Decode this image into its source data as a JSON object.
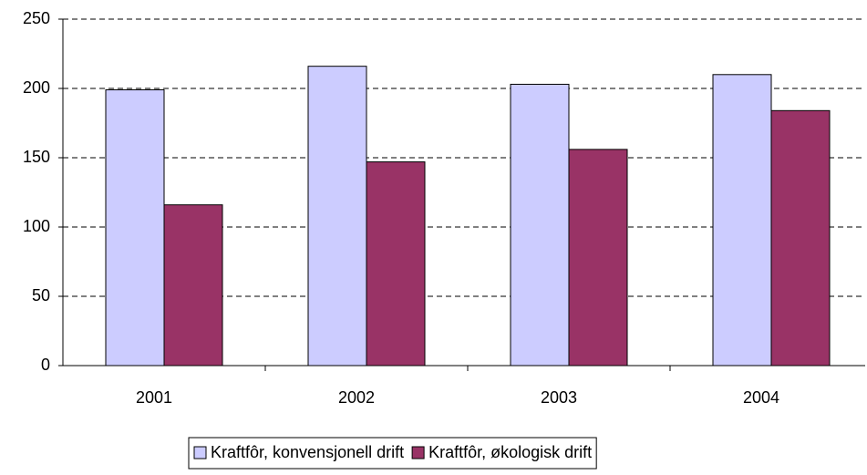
{
  "chart_data": {
    "type": "bar",
    "categories": [
      "2001",
      "2002",
      "2003",
      "2004"
    ],
    "series": [
      {
        "name": "Kraftfôr, konvensjonell drift",
        "color": "#ccccff",
        "values": [
          199,
          216,
          203,
          210
        ]
      },
      {
        "name": "Kraftfôr,  økologisk drift",
        "color": "#993366",
        "values": [
          116,
          147,
          156,
          184
        ]
      }
    ],
    "ylim": [
      0,
      250
    ],
    "yticks": [
      0,
      50,
      100,
      150,
      200,
      250
    ],
    "grid": true,
    "legend": "bottom"
  }
}
